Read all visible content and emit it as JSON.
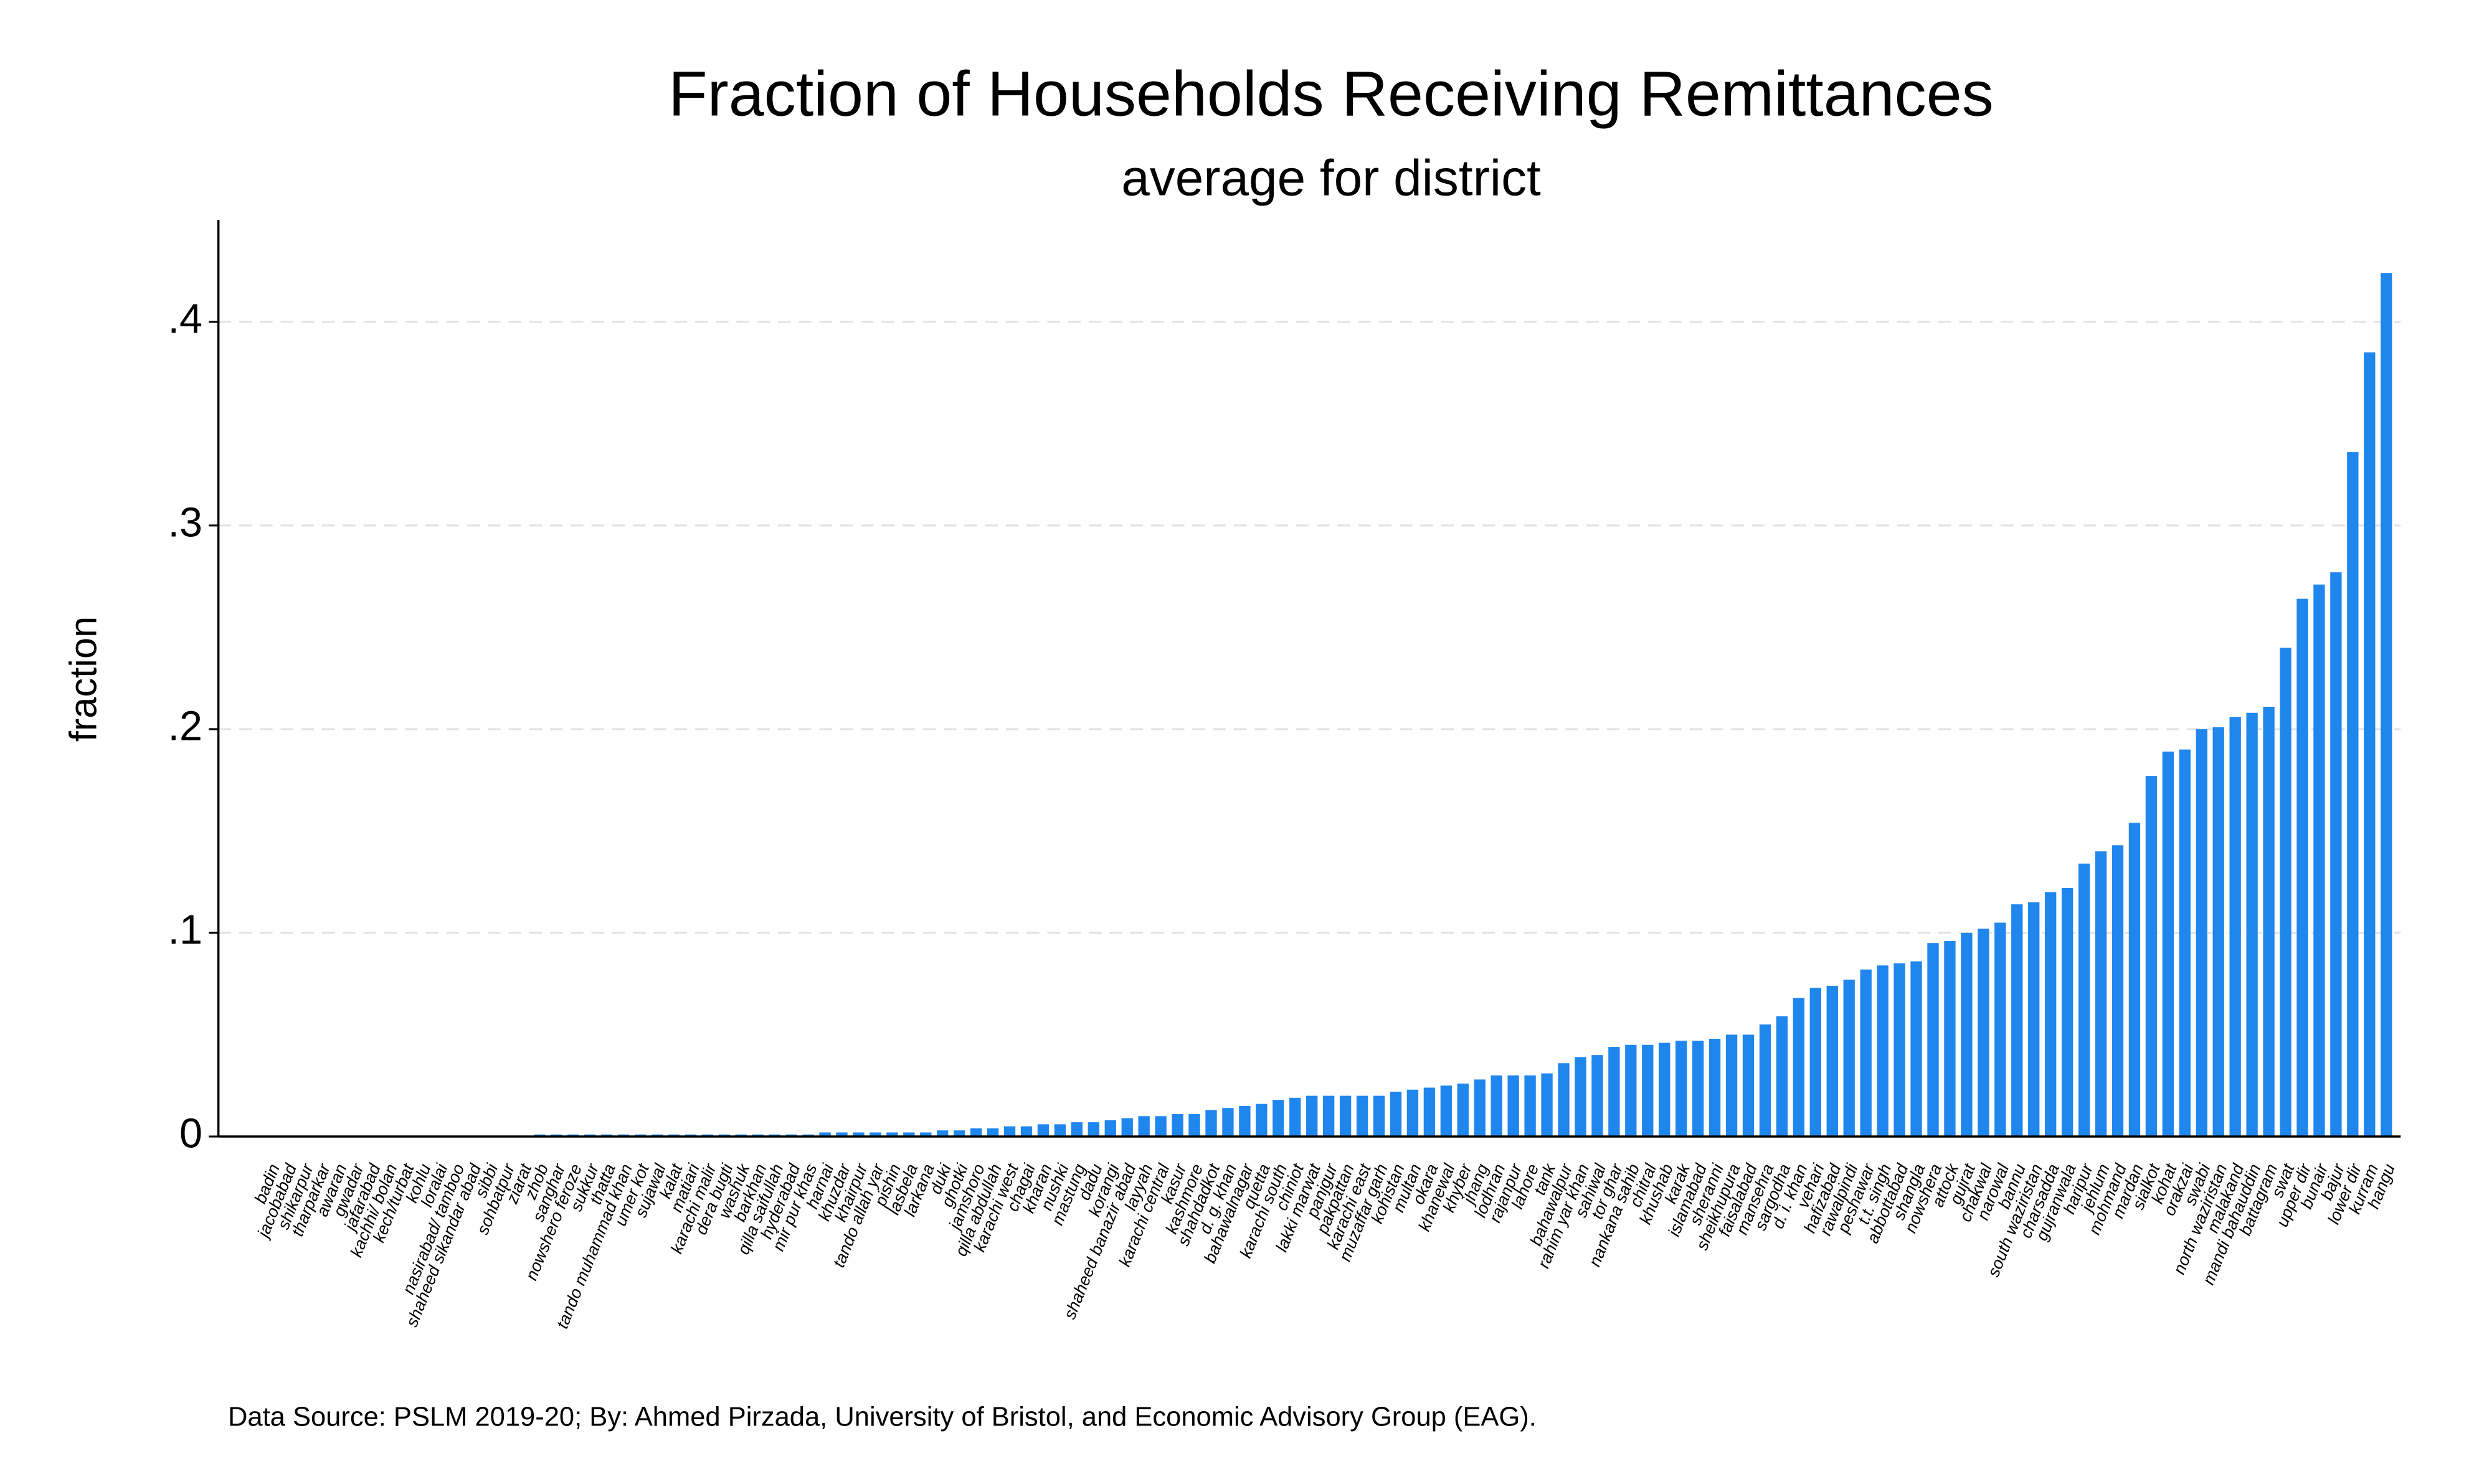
{
  "chart_data": {
    "type": "bar",
    "title": "Fraction of Households Receiving Remittances",
    "subtitle": "average for district",
    "ylabel": "fraction",
    "note": "Data Source: PSLM 2019-20; By: Ahmed Pirzada, University of Bristol, and Economic Advisory Group (EAG).",
    "color": "#1f86ee",
    "grid": true,
    "ylim": [
      0,
      0.45
    ],
    "yticks": [
      0,
      {
        "value": 0.1,
        "label": ".1"
      },
      {
        "value": 0.2,
        "label": ".2"
      },
      {
        "value": 0.3,
        "label": ".3"
      },
      {
        "value": 0.4,
        "label": ".4"
      }
    ],
    "categories": [
      "badin",
      "jacobabad",
      "shikarpur",
      "tharparkar",
      "awaran",
      "gwadar",
      "jafarabad",
      "kachhi/ bolan",
      "kech/turbat",
      "kohlu",
      "loralai",
      "nasirabad/ tamboo",
      "shaheed sikandar abad",
      "sibbi",
      "sohbatpur",
      "ziarat",
      "zhob",
      "sanghar",
      "nowshero feroze",
      "sukkur",
      "thatta",
      "tando muhammad khan",
      "umer kot",
      "sujawal",
      "kalat",
      "matiari",
      "karachi malir",
      "dera bugti",
      "washuk",
      "barkhan",
      "qilla saifullah",
      "hyderabad",
      "mir pur khas",
      "harnai",
      "khuzdar",
      "khairpur",
      "tando allah yar",
      "pishin",
      "lasbela",
      "larkana",
      "duki",
      "ghotki",
      "jamshoro",
      "qilla abdullah",
      "karachi west",
      "chagai",
      "kharan",
      "nushki",
      "mastung",
      "dadu",
      "korangi",
      "shaheed banazir abad",
      "layyah",
      "karachi central",
      "kasur",
      "kashmore",
      "shahdadkot",
      "d. g. khan",
      "bahawalnagar",
      "quetta",
      "karachi south",
      "chiniot",
      "lakki marwat",
      "panjgur",
      "pakpattan",
      "karachi east",
      "muzaffar garh",
      "kohistan",
      "multan",
      "okara",
      "khanewal",
      "khyber",
      "jhang",
      "lodhran",
      "rajanpur",
      "lahore",
      "tank",
      "bahawalpur",
      "rahim yar khan",
      "sahiwal",
      "tor ghar",
      "nankana sahib",
      "chitral",
      "khushab",
      "karak",
      "islamabad",
      "sheranni",
      "sheikhupura",
      "faisalabad",
      "mansehra",
      "sargodha",
      "d. i. khan",
      "vehari",
      "hafizabad",
      "rawalpindi",
      "peshawar",
      "t.t. singh",
      "abbottabad",
      "shangla",
      "nowshera",
      "attock",
      "gujrat",
      "chakwal",
      "narowal",
      "bannu",
      "south waziristan",
      "charsadda",
      "gujranwala",
      "haripur",
      "jehlum",
      "mohmand",
      "mardan",
      "sialkot",
      "kohat",
      "orakzai",
      "swabi",
      "north waziristan",
      "malakand",
      "mandi bahauddin",
      "battagram",
      "swat",
      "upper dir",
      "bunair",
      "bajur",
      "lower dir",
      "kurram",
      "hangu"
    ],
    "values": [
      0,
      0,
      0,
      0,
      0,
      0,
      0,
      0,
      0,
      0,
      0,
      0,
      0,
      0,
      0,
      0,
      0.001,
      0.001,
      0.001,
      0.001,
      0.001,
      0.001,
      0.001,
      0.001,
      0.001,
      0.001,
      0.001,
      0.001,
      0.001,
      0.001,
      0.001,
      0.001,
      0.001,
      0.002,
      0.002,
      0.002,
      0.002,
      0.002,
      0.002,
      0.002,
      0.003,
      0.003,
      0.004,
      0.004,
      0.005,
      0.005,
      0.006,
      0.006,
      0.007,
      0.007,
      0.008,
      0.009,
      0.01,
      0.01,
      0.011,
      0.011,
      0.013,
      0.014,
      0.015,
      0.016,
      0.018,
      0.019,
      0.02,
      0.02,
      0.02,
      0.02,
      0.02,
      0.022,
      0.023,
      0.024,
      0.025,
      0.026,
      0.028,
      0.03,
      0.03,
      0.03,
      0.031,
      0.036,
      0.039,
      0.04,
      0.044,
      0.045,
      0.045,
      0.046,
      0.047,
      0.047,
      0.048,
      0.05,
      0.05,
      0.055,
      0.059,
      0.068,
      0.073,
      0.074,
      0.077,
      0.082,
      0.084,
      0.085,
      0.086,
      0.095,
      0.096,
      0.1,
      0.102,
      0.105,
      0.114,
      0.115,
      0.12,
      0.122,
      0.134,
      0.14,
      0.143,
      0.154,
      0.177,
      0.189,
      0.19,
      0.2,
      0.201,
      0.206,
      0.208,
      0.211,
      0.24,
      0.264,
      0.271,
      0.277,
      0.336,
      0.385,
      0.424
    ]
  }
}
